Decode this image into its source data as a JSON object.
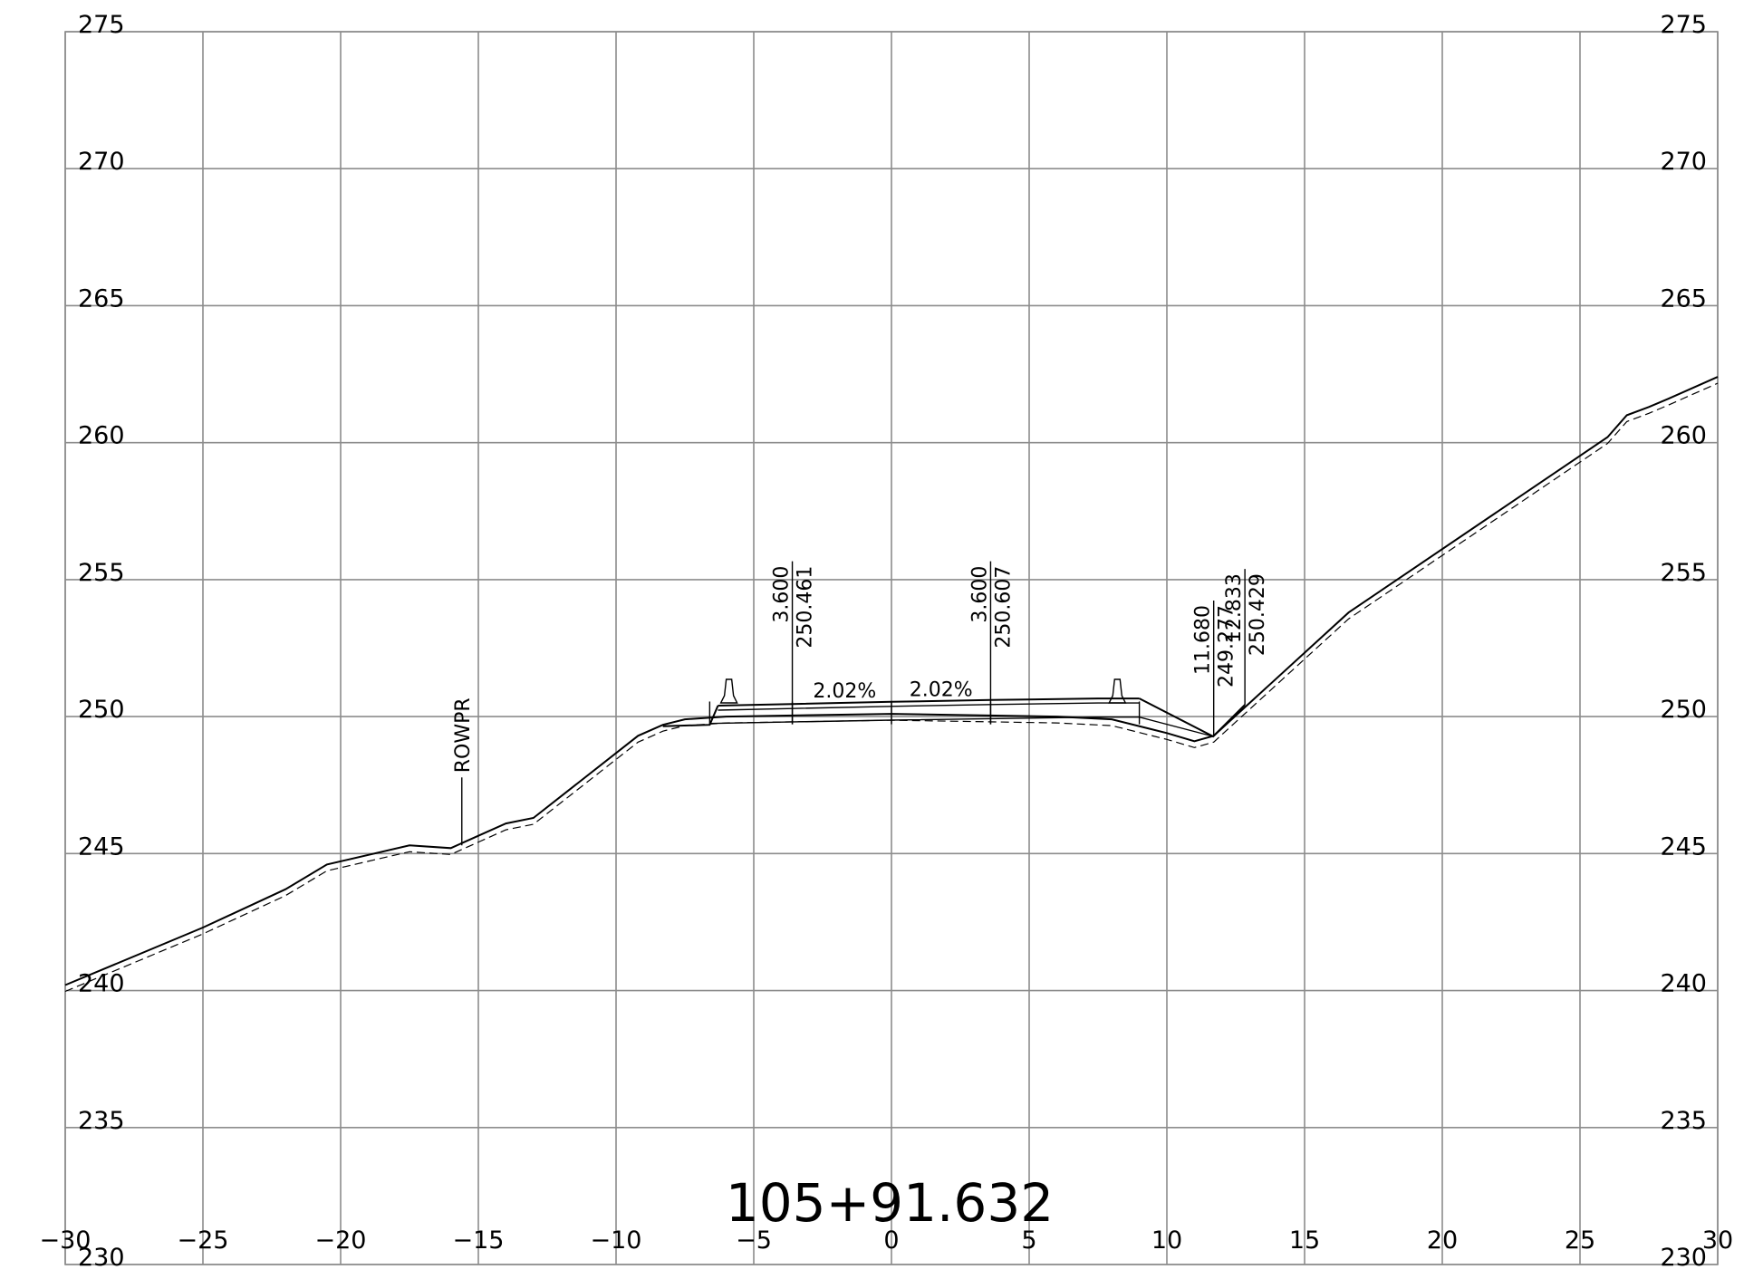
{
  "chart_data": {
    "type": "cross-section",
    "title": "105+91.632",
    "xlim": [
      -30,
      30
    ],
    "ylim": [
      230,
      275
    ],
    "x_ticks": [
      "-30",
      "-25",
      "-20",
      "-15",
      "-10",
      "-5",
      "0",
      "5",
      "10",
      "15",
      "20",
      "25",
      "30"
    ],
    "y_ticks": [
      "275",
      "270",
      "265",
      "260",
      "255",
      "250",
      "245",
      "240",
      "235",
      "230"
    ],
    "grid": true,
    "existing_ground": [
      [
        -30,
        240.2
      ],
      [
        -25,
        242.3
      ],
      [
        -22,
        243.7
      ],
      [
        -20.5,
        244.6
      ],
      [
        -17.5,
        245.3
      ],
      [
        -16,
        245.2
      ],
      [
        -14,
        246.1
      ],
      [
        -13,
        246.3
      ],
      [
        -9.2,
        249.3
      ],
      [
        -8.3,
        249.7
      ],
      [
        -7.5,
        249.9
      ],
      [
        -6,
        250.0
      ],
      [
        0,
        250.1
      ],
      [
        6,
        250.0
      ],
      [
        8,
        249.9
      ],
      [
        10,
        249.4
      ],
      [
        11,
        249.1
      ],
      [
        11.7,
        249.3
      ],
      [
        16.6,
        253.8
      ],
      [
        26,
        260.2
      ],
      [
        26.7,
        261.0
      ],
      [
        27.5,
        261.3
      ],
      [
        28.2,
        261.6
      ],
      [
        30,
        262.4
      ]
    ],
    "pavement_top": [
      [
        -6.3,
        250.4
      ],
      [
        -3.6,
        250.461
      ],
      [
        0,
        250.54
      ],
      [
        3.6,
        250.607
      ],
      [
        7.5,
        250.66
      ],
      [
        9.0,
        250.66
      ]
    ],
    "barriers": [
      -5.9,
      8.2
    ],
    "annotations": [
      {
        "label": "ROWPR",
        "x": -15.6
      },
      {
        "label_top": "3.600",
        "label_bottom": "250.461",
        "x": -3.6
      },
      {
        "label_top": "3.600",
        "label_bottom": "250.607",
        "x": 3.6
      },
      {
        "label_top": "11.680",
        "label_bottom": "249.277",
        "x": 11.7
      },
      {
        "label_top": "12.833",
        "label_bottom": "250.429",
        "x": 12.833
      }
    ],
    "slopes": [
      "2.02%",
      "2.02%"
    ]
  }
}
